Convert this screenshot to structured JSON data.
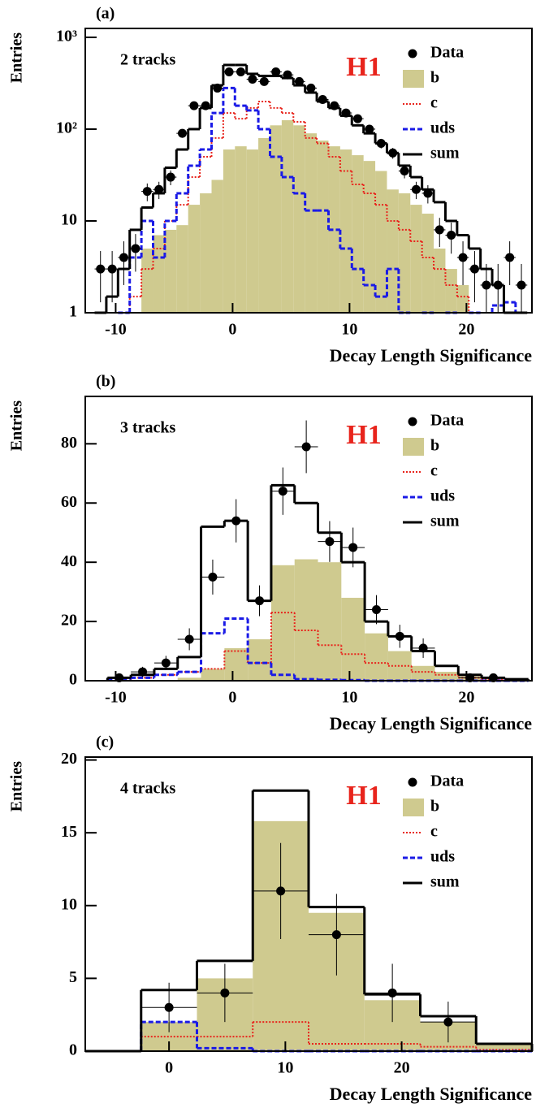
{
  "chart_data": [
    {
      "type": "histogram",
      "title": "(a)",
      "annotation": "2 tracks",
      "logo": "H1",
      "xlabel": "Decay Length Significance",
      "ylabel": "Entries",
      "log_y": true,
      "xlim": [
        -12.6,
        25.6
      ],
      "ylim": [
        1,
        1250
      ],
      "xticks": [
        -10,
        0,
        10,
        20
      ],
      "yticks": [
        1,
        10,
        {
          "value": 100,
          "label": "10²"
        },
        {
          "value": 1000,
          "label": "10³"
        }
      ],
      "bins": [
        -11.8,
        -10.8,
        -9.8,
        -8.8,
        -7.8,
        -6.8,
        -5.8,
        -4.8,
        -3.8,
        -2.8,
        -1.8,
        -0.8,
        0.2,
        1.2,
        2.2,
        3.2,
        4.2,
        5.2,
        6.2,
        7.2,
        8.2,
        9.2,
        10.2,
        11.2,
        12.2,
        13.2,
        14.2,
        15.2,
        16.2,
        17.2,
        18.2,
        19.2,
        20.2,
        21.2,
        22.2,
        23.2,
        24.2,
        25.2
      ],
      "series": [
        {
          "name": "Data",
          "color": "#000000",
          "style": "points",
          "values": [
            3,
            3,
            4,
            5,
            21,
            22,
            30,
            90,
            180,
            180,
            280,
            420,
            420,
            350,
            330,
            420,
            390,
            330,
            280,
            210,
            180,
            150,
            130,
            100,
            70,
            55,
            35,
            22,
            20,
            8,
            7,
            4,
            3,
            2,
            2,
            4,
            2
          ],
          "errors": [
            1.7,
            1.7,
            2,
            2.2,
            4.6,
            4.7,
            5.5,
            9.5,
            13.4,
            13.4,
            16.7,
            20.5,
            20.5,
            18.7,
            18.2,
            20.5,
            19.7,
            18.2,
            16.7,
            14.5,
            13.4,
            12.2,
            11.4,
            10,
            8.4,
            7.4,
            5.9,
            4.7,
            4.5,
            2.8,
            2.6,
            2,
            1.7,
            1.4,
            1.4,
            2,
            1.4
          ]
        },
        {
          "name": "b",
          "color": "#cfca8f",
          "style": "fill",
          "values": [
            null,
            null,
            null,
            null,
            5,
            7,
            8,
            9,
            15,
            20,
            28,
            60,
            65,
            60,
            80,
            110,
            125,
            110,
            90,
            75,
            65,
            60,
            52,
            45,
            35,
            22,
            20,
            15,
            12,
            5,
            3,
            2,
            null,
            null,
            null,
            null,
            null
          ]
        },
        {
          "name": "c",
          "color": "#e8241c",
          "style": "dotted",
          "values": [
            null,
            null,
            1,
            1.5,
            3,
            5,
            10,
            15,
            30,
            50,
            80,
            150,
            130,
            170,
            200,
            170,
            150,
            120,
            80,
            70,
            50,
            35,
            25,
            20,
            15,
            10,
            8,
            6,
            4,
            3,
            2,
            1.5,
            1,
            null,
            null,
            null,
            null
          ]
        },
        {
          "name": "uds",
          "color": "#1a1ae6",
          "style": "dashed",
          "values": [
            null,
            null,
            1,
            4,
            10,
            4,
            10,
            20,
            40,
            60,
            150,
            280,
            180,
            160,
            100,
            50,
            30,
            20,
            13,
            13,
            8,
            5,
            3,
            2,
            1.5,
            3,
            1,
            null,
            1,
            null,
            1,
            null,
            1,
            null,
            1.2,
            1.3,
            null
          ]
        },
        {
          "name": "sum",
          "color": "#000000",
          "style": "solid",
          "values": [
            1,
            1.5,
            3,
            8,
            14,
            20,
            38,
            60,
            100,
            170,
            300,
            500,
            500,
            400,
            380,
            380,
            360,
            300,
            250,
            200,
            170,
            140,
            110,
            90,
            70,
            55,
            40,
            30,
            22,
            16,
            10,
            7,
            5,
            3,
            2,
            1,
            1
          ]
        }
      ]
    },
    {
      "type": "histogram",
      "title": "(b)",
      "annotation": "3 tracks",
      "logo": "H1",
      "xlabel": "Decay Length Significance",
      "ylabel": "Entries",
      "log_y": false,
      "xlim": [
        -12.6,
        25.6
      ],
      "ylim": [
        0,
        96
      ],
      "xticks": [
        -10,
        0,
        10,
        20
      ],
      "yticks": [
        0,
        20,
        40,
        60,
        80
      ],
      "bins": [
        -10.7,
        -8.7,
        -6.7,
        -4.7,
        -2.7,
        -0.7,
        1.3,
        3.3,
        5.3,
        7.3,
        9.3,
        11.3,
        13.3,
        15.3,
        17.3,
        19.3,
        21.3,
        23.3,
        25.3
      ],
      "series": [
        {
          "name": "Data",
          "color": "#000000",
          "style": "points",
          "values": [
            1,
            3,
            6,
            14,
            35,
            54,
            27,
            64,
            79,
            47,
            45,
            24,
            15,
            11,
            null,
            1,
            1,
            null
          ],
          "errors": [
            1,
            1.7,
            2.4,
            3.7,
            5.9,
            7.3,
            5.2,
            8,
            8.9,
            6.9,
            6.7,
            4.9,
            3.9,
            3.3,
            null,
            1,
            1,
            null
          ]
        },
        {
          "name": "b",
          "color": "#cfca8f",
          "style": "fill",
          "values": [
            0,
            0,
            0,
            1,
            4,
            11,
            14,
            39,
            41,
            40,
            28,
            16,
            10,
            5,
            3,
            1.5,
            0.5,
            0.3
          ]
        },
        {
          "name": "c",
          "color": "#e8241c",
          "style": "dotted",
          "values": [
            0,
            1,
            2,
            3,
            4,
            10,
            6,
            23,
            17,
            12,
            9,
            6,
            5,
            3,
            2,
            1,
            0.5,
            0.3
          ]
        },
        {
          "name": "uds",
          "color": "#1a1ae6",
          "style": "dashed",
          "values": [
            0.5,
            1,
            2,
            3,
            16,
            21,
            6,
            2,
            0.5,
            0.3,
            0.2,
            0,
            0,
            0,
            0,
            0,
            0,
            0
          ]
        },
        {
          "name": "sum",
          "color": "#000000",
          "style": "solid",
          "values": [
            1,
            2,
            4,
            8,
            52,
            54,
            27,
            66,
            60,
            50,
            40,
            20,
            15,
            10,
            5,
            2,
            1,
            0.5
          ]
        }
      ]
    },
    {
      "type": "histogram",
      "title": "(c)",
      "annotation": "4 tracks",
      "logo": "H1",
      "xlabel": "Decay Length Significance",
      "ylabel": "Entries",
      "log_y": false,
      "xlim": [
        -7.2,
        31.2
      ],
      "ylim": [
        0,
        20.2
      ],
      "xticks": [
        0,
        10,
        20
      ],
      "yticks": [
        0,
        5,
        10,
        15,
        20
      ],
      "bins": [
        -7.2,
        -2.4,
        2.4,
        7.2,
        12,
        16.8,
        21.6,
        26.4,
        31.2
      ],
      "series": [
        {
          "name": "Data",
          "color": "#000000",
          "style": "points",
          "values": [
            null,
            3,
            4,
            11,
            8,
            4,
            2,
            null
          ],
          "errors": [
            null,
            1.7,
            2,
            3.3,
            2.8,
            2,
            1.4,
            null
          ]
        },
        {
          "name": "b",
          "color": "#cfca8f",
          "style": "fill",
          "values": [
            0,
            2,
            5,
            15.8,
            9.5,
            3.5,
            2,
            0.5
          ]
        },
        {
          "name": "c",
          "color": "#e8241c",
          "style": "dotted",
          "values": [
            0,
            1,
            1,
            2,
            0.5,
            0.5,
            0.3,
            0.1
          ]
        },
        {
          "name": "uds",
          "color": "#1a1ae6",
          "style": "dashed",
          "values": [
            0,
            2,
            0.2,
            0,
            0,
            0,
            0,
            0
          ]
        },
        {
          "name": "sum",
          "color": "#000000",
          "style": "solid",
          "values": [
            0,
            4.2,
            6.2,
            17.9,
            9.9,
            3.9,
            2.4,
            0.5
          ]
        }
      ]
    }
  ]
}
